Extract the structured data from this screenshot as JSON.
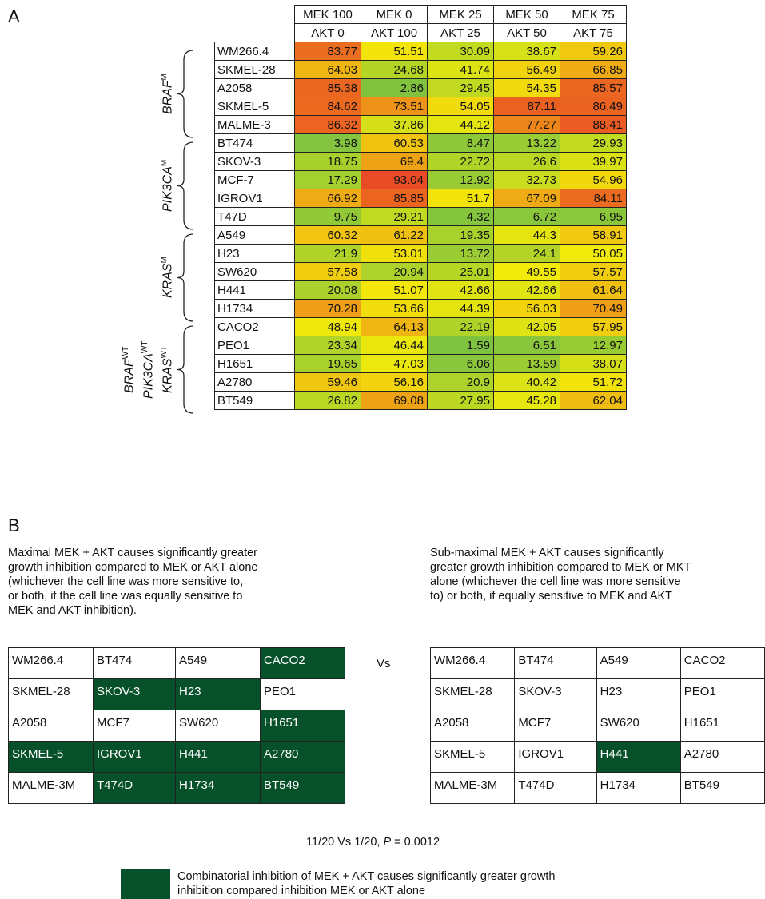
{
  "panel_a_letter": "A",
  "panel_b_letter": "B",
  "chart_data": {
    "type": "heatmap",
    "columns": [
      {
        "top": "MEK 100",
        "bottom": "AKT 0"
      },
      {
        "top": "MEK 0",
        "bottom": "AKT 100"
      },
      {
        "top": "MEK 25",
        "bottom": "AKT 25"
      },
      {
        "top": "MEK 50",
        "bottom": "AKT 50"
      },
      {
        "top": "MEK 75",
        "bottom": "AKT 75"
      }
    ],
    "color_scale": {
      "low": "#7ac142",
      "mid": "#f2ea0a",
      "high": "#e8312a",
      "range": [
        0,
        100
      ]
    },
    "groups": [
      {
        "label": "BRAF",
        "sup": "M",
        "rows": [
          "WM266.4",
          "SKMEL-28",
          "A2058",
          "SKMEL-5",
          "MALME-3"
        ]
      },
      {
        "label": "PIK3CA",
        "sup": "M",
        "rows": [
          "BT474",
          "SKOV-3",
          "MCF-7",
          "IGROV1",
          "T47D"
        ]
      },
      {
        "label": "KRAS",
        "sup": "M",
        "rows": [
          "A549",
          "H23",
          "SW620",
          "H441",
          "H1734"
        ]
      },
      {
        "label": "BRAF/PIK3CA/KRAS",
        "lines": [
          {
            "t": "BRAF",
            "s": "WT"
          },
          {
            "t": "PIK3CA",
            "s": "WT"
          },
          {
            "t": "KRAS",
            "s": "WT"
          }
        ],
        "rows": [
          "CACO2",
          "PEO1",
          "H1651",
          "A2780",
          "BT549"
        ]
      }
    ],
    "rows": [
      {
        "name": "WM266.4",
        "values": [
          "83.77",
          "51.51",
          "30.09",
          "38.67",
          "59.26"
        ]
      },
      {
        "name": "SKMEL-28",
        "values": [
          "64.03",
          "24.68",
          "41.74",
          "56.49",
          "66.85"
        ]
      },
      {
        "name": "A2058",
        "values": [
          "85.38",
          "2.86",
          "29.45",
          "54.35",
          "85.57"
        ]
      },
      {
        "name": "SKMEL-5",
        "values": [
          "84.62",
          "73.51",
          "54.05",
          "87.11",
          "86.49"
        ]
      },
      {
        "name": "MALME-3",
        "values": [
          "86.32",
          "37.86",
          "44.12",
          "77.27",
          "88.41"
        ]
      },
      {
        "name": "BT474",
        "values": [
          "3.98",
          "60.53",
          "8.47",
          "13.22",
          "29.93"
        ]
      },
      {
        "name": "SKOV-3",
        "values": [
          "18.75",
          "69.4",
          "22.72",
          "26.6",
          "39.97"
        ]
      },
      {
        "name": "MCF-7",
        "values": [
          "17.29",
          "93.04",
          "12.92",
          "32.73",
          "54.96"
        ]
      },
      {
        "name": "IGROV1",
        "values": [
          "66.92",
          "85.85",
          "51.7",
          "67.09",
          "84.11"
        ]
      },
      {
        "name": "T47D",
        "values": [
          "9.75",
          "29.21",
          "4.32",
          "6.72",
          "6.95"
        ]
      },
      {
        "name": "A549",
        "values": [
          "60.32",
          "61.22",
          "19.35",
          "44.3",
          "58.91"
        ]
      },
      {
        "name": "H23",
        "values": [
          "21.9",
          "53.01",
          "13.72",
          "24.1",
          "50.05"
        ]
      },
      {
        "name": "SW620",
        "values": [
          "57.58",
          "20.94",
          "25.01",
          "49.55",
          "57.57"
        ]
      },
      {
        "name": "H441",
        "values": [
          "20.08",
          "51.07",
          "42.66",
          "42.66",
          "61.64"
        ]
      },
      {
        "name": "H1734",
        "values": [
          "70.28",
          "53.66",
          "44.39",
          "56.03",
          "70.49"
        ]
      },
      {
        "name": "CACO2",
        "values": [
          "48.94",
          "64.13",
          "22.19",
          "42.05",
          "57.95"
        ]
      },
      {
        "name": "PEO1",
        "values": [
          "23.34",
          "46.44",
          "1.59",
          "6.51",
          "12.97"
        ]
      },
      {
        "name": "H1651",
        "values": [
          "19.65",
          "47.03",
          "6.06",
          "13.59",
          "38.07"
        ]
      },
      {
        "name": "A2780",
        "values": [
          "59.46",
          "56.16",
          "20.9",
          "40.42",
          "51.72"
        ]
      },
      {
        "name": "BT549",
        "values": [
          "26.82",
          "69.08",
          "27.95",
          "45.28",
          "62.04"
        ]
      }
    ]
  },
  "panel_b": {
    "left_desc": [
      "Maximal MEK + AKT causes significantly greater",
      "growth inhibition compared to MEK or AKT alone",
      "(whichever the cell line was more sensitive to,",
      "or both, if the cell line was equally sensitive to",
      "MEK and AKT inhibition)."
    ],
    "right_desc": [
      "Sub-maximal MEK + AKT causes significantly",
      "greater growth inhibition compared to MEK or MKT",
      "alone (whichever the cell line was more sensitive",
      "to) or both, if equally sensitive to MEK and AKT"
    ],
    "vs": "Vs",
    "left_grid": [
      [
        {
          "t": "WM266.4",
          "on": false
        },
        {
          "t": "BT474",
          "on": false
        },
        {
          "t": "A549",
          "on": false
        },
        {
          "t": "CACO2",
          "on": true
        }
      ],
      [
        {
          "t": "SKMEL-28",
          "on": false
        },
        {
          "t": "SKOV-3",
          "on": true
        },
        {
          "t": "H23",
          "on": true
        },
        {
          "t": "PEO1",
          "on": false
        }
      ],
      [
        {
          "t": "A2058",
          "on": false
        },
        {
          "t": "MCF7",
          "on": false
        },
        {
          "t": "SW620",
          "on": false
        },
        {
          "t": "H1651",
          "on": true
        }
      ],
      [
        {
          "t": "SKMEL-5",
          "on": true
        },
        {
          "t": "IGROV1",
          "on": true
        },
        {
          "t": "H441",
          "on": true
        },
        {
          "t": "A2780",
          "on": true
        }
      ],
      [
        {
          "t": "MALME-3M",
          "on": false
        },
        {
          "t": "T474D",
          "on": true
        },
        {
          "t": "H1734",
          "on": true
        },
        {
          "t": "BT549",
          "on": true
        }
      ]
    ],
    "right_grid": [
      [
        {
          "t": "WM266.4",
          "on": false
        },
        {
          "t": "BT474",
          "on": false
        },
        {
          "t": "A549",
          "on": false
        },
        {
          "t": "CACO2",
          "on": false
        }
      ],
      [
        {
          "t": "SKMEL-28",
          "on": false
        },
        {
          "t": "SKOV-3",
          "on": false
        },
        {
          "t": "H23",
          "on": false
        },
        {
          "t": "PEO1",
          "on": false
        }
      ],
      [
        {
          "t": "A2058",
          "on": false
        },
        {
          "t": "MCF7",
          "on": false
        },
        {
          "t": "SW620",
          "on": false
        },
        {
          "t": "H1651",
          "on": false
        }
      ],
      [
        {
          "t": "SKMEL-5",
          "on": false
        },
        {
          "t": "IGROV1",
          "on": false
        },
        {
          "t": "H441",
          "on": true
        },
        {
          "t": "A2780",
          "on": false
        }
      ],
      [
        {
          "t": "MALME-3M",
          "on": false
        },
        {
          "t": "T474D",
          "on": false
        },
        {
          "t": "H1734",
          "on": false
        },
        {
          "t": "BT549",
          "on": false
        }
      ]
    ],
    "stat_prefix": "11/20 Vs 1/20, ",
    "stat_p": "P",
    "stat_suffix": " = 0.0012",
    "highlight_color": "#07512a",
    "legend_lines": [
      "Combinatorial inhibition of MEK + AKT causes significantly greater growth",
      "inhibition compared inhibition MEK or AKT alone"
    ]
  }
}
